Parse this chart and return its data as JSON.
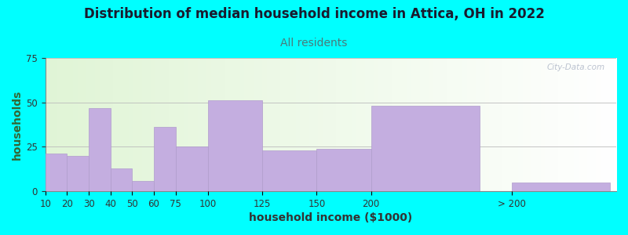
{
  "title": "Distribution of median household income in Attica, OH in 2022",
  "subtitle": "All residents",
  "xlabel": "household income ($1000)",
  "ylabel": "households",
  "background_color": "#00FFFF",
  "bar_color": "#c4aee0",
  "bar_edge_color": "#b09ccc",
  "ylim": [
    0,
    75
  ],
  "yticks": [
    0,
    25,
    50,
    75
  ],
  "categories": [
    "10",
    "20",
    "30",
    "40",
    "50",
    "60",
    "75",
    "100",
    "125",
    "150",
    "200",
    "> 200"
  ],
  "values": [
    21,
    20,
    47,
    13,
    6,
    36,
    25,
    51,
    23,
    24,
    48,
    5
  ],
  "bar_lefts": [
    0,
    10,
    20,
    30,
    40,
    50,
    60,
    75,
    100,
    125,
    150,
    215
  ],
  "bar_widths": [
    10,
    10,
    10,
    10,
    10,
    10,
    15,
    25,
    25,
    25,
    50,
    45
  ],
  "title_fontsize": 12,
  "subtitle_fontsize": 10,
  "axis_label_fontsize": 10,
  "tick_fontsize": 8.5,
  "watermark_text": "City-Data.com",
  "xlim_left": 0,
  "xlim_right": 263
}
